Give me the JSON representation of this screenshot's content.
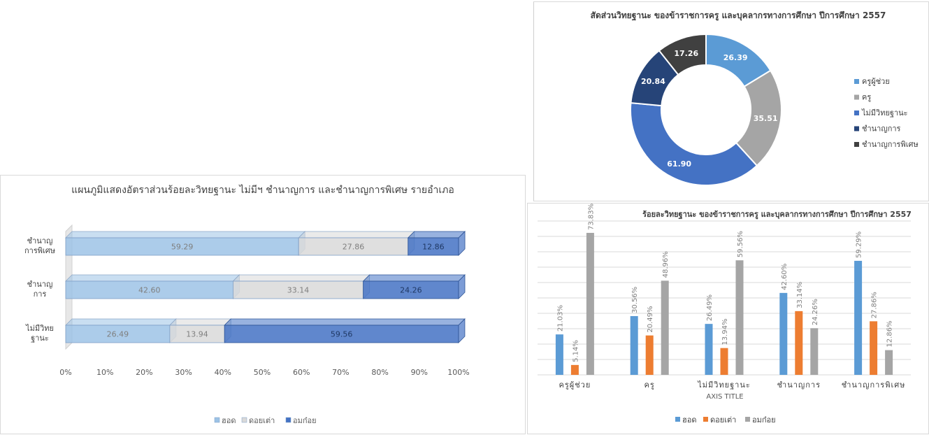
{
  "colors": {
    "hot": "#5b9bd5",
    "doi": "#ed7d31",
    "omkoi": "#a5a5a5",
    "bar_hot": "#9dc3e6",
    "bar_doi": "#d9d9d9",
    "bar_omkoi": "#4472c4",
    "pie": [
      "#5b9bd5",
      "#a5a5a5",
      "#4472c4",
      "#264478",
      "#404040"
    ]
  },
  "bar_chart": {
    "title": "แผนภูมิแสดงอัตราส่วนร้อยละวิทยฐานะ ไม่มีฯ ชำนาญการ และชำนาญการพิเศษ รายอำเภอ",
    "chart_data": {
      "type": "bar",
      "orientation": "horizontal-stacked-100",
      "categories": [
        [
          "ชำนาญ",
          "การพิเศษ"
        ],
        [
          "ชำนาญ",
          "การ"
        ],
        [
          "ไม่มีวิทย",
          "ฐานะ"
        ]
      ],
      "series": [
        {
          "name": "ฮอด",
          "values": [
            59.29,
            42.6,
            26.49
          ]
        },
        {
          "name": "ดอยเต่า",
          "values": [
            27.86,
            33.14,
            13.94
          ]
        },
        {
          "name": "อมก๋อย",
          "values": [
            12.86,
            24.26,
            59.56
          ]
        }
      ],
      "data_labels": [
        [
          "59.29",
          "27.86",
          "12.86"
        ],
        [
          "42.60",
          "33.14",
          "24.26"
        ],
        [
          "26.49",
          "13.94",
          "59.56"
        ]
      ],
      "x_ticks": [
        "0%",
        "10%",
        "20%",
        "30%",
        "40%",
        "50%",
        "60%",
        "70%",
        "80%",
        "90%",
        "100%"
      ],
      "xlim": [
        0,
        100
      ],
      "legend": [
        "ฮอด",
        "ดอยเต่า",
        "อมก๋อย"
      ],
      "legend_position": "bottom"
    }
  },
  "pie_chart": {
    "title": "สัดส่วนวิทยฐานะ ของข้าราชการครู และบุคลากรทางการศึกษา ปีการศึกษา 2557",
    "chart_data": {
      "type": "pie",
      "style": "doughnut",
      "labels": [
        "ครูผู้ช่วย",
        "ครู",
        "ไม่มีวิทยฐานะ",
        "ชำนาญการ",
        "ชำนาญการพิเศษ"
      ],
      "values": [
        26.39,
        35.51,
        61.9,
        20.84,
        17.26
      ],
      "data_labels": [
        "26.39",
        "35.51",
        "61.90",
        "20.84",
        "17.26"
      ],
      "legend_position": "right"
    }
  },
  "column_chart": {
    "title": "ร้อยละวิทยฐานะ ของข้าราชการครู และบุคลากรทางการศึกษา ปีการศึกษา 2557",
    "chart_data": {
      "type": "bar",
      "orientation": "vertical-clustered",
      "categories": [
        "ครูผู้ช่วย",
        "ครู",
        "ไม่มีวิทยฐานะ",
        "ชำนาญการ",
        "ชำนาญการพิเศษ"
      ],
      "series": [
        {
          "name": "ฮอด",
          "values": [
            21.03,
            30.56,
            26.49,
            42.6,
            59.29
          ],
          "labels": [
            "21.03%",
            "30.56%",
            "26.49%",
            "42.60%",
            "59.29%"
          ]
        },
        {
          "name": "ดอยเต่า",
          "values": [
            5.14,
            20.49,
            13.94,
            33.14,
            27.86
          ],
          "labels": [
            "5.14%",
            "20.49%",
            "13.94%",
            "33.14%",
            "27.86%"
          ]
        },
        {
          "name": "อมก๋อย",
          "values": [
            73.83,
            48.96,
            59.56,
            24.26,
            12.86
          ],
          "labels": [
            "73.83%",
            "48.96%",
            "59.56%",
            "24.26%",
            "12.86%"
          ]
        }
      ],
      "xlabel": "AXIS TITLE",
      "ylim": [
        0,
        80
      ],
      "grid": true,
      "legend": [
        "ฮอด",
        "ดอยเต่า",
        "อมก๋อย"
      ],
      "legend_position": "bottom"
    }
  }
}
